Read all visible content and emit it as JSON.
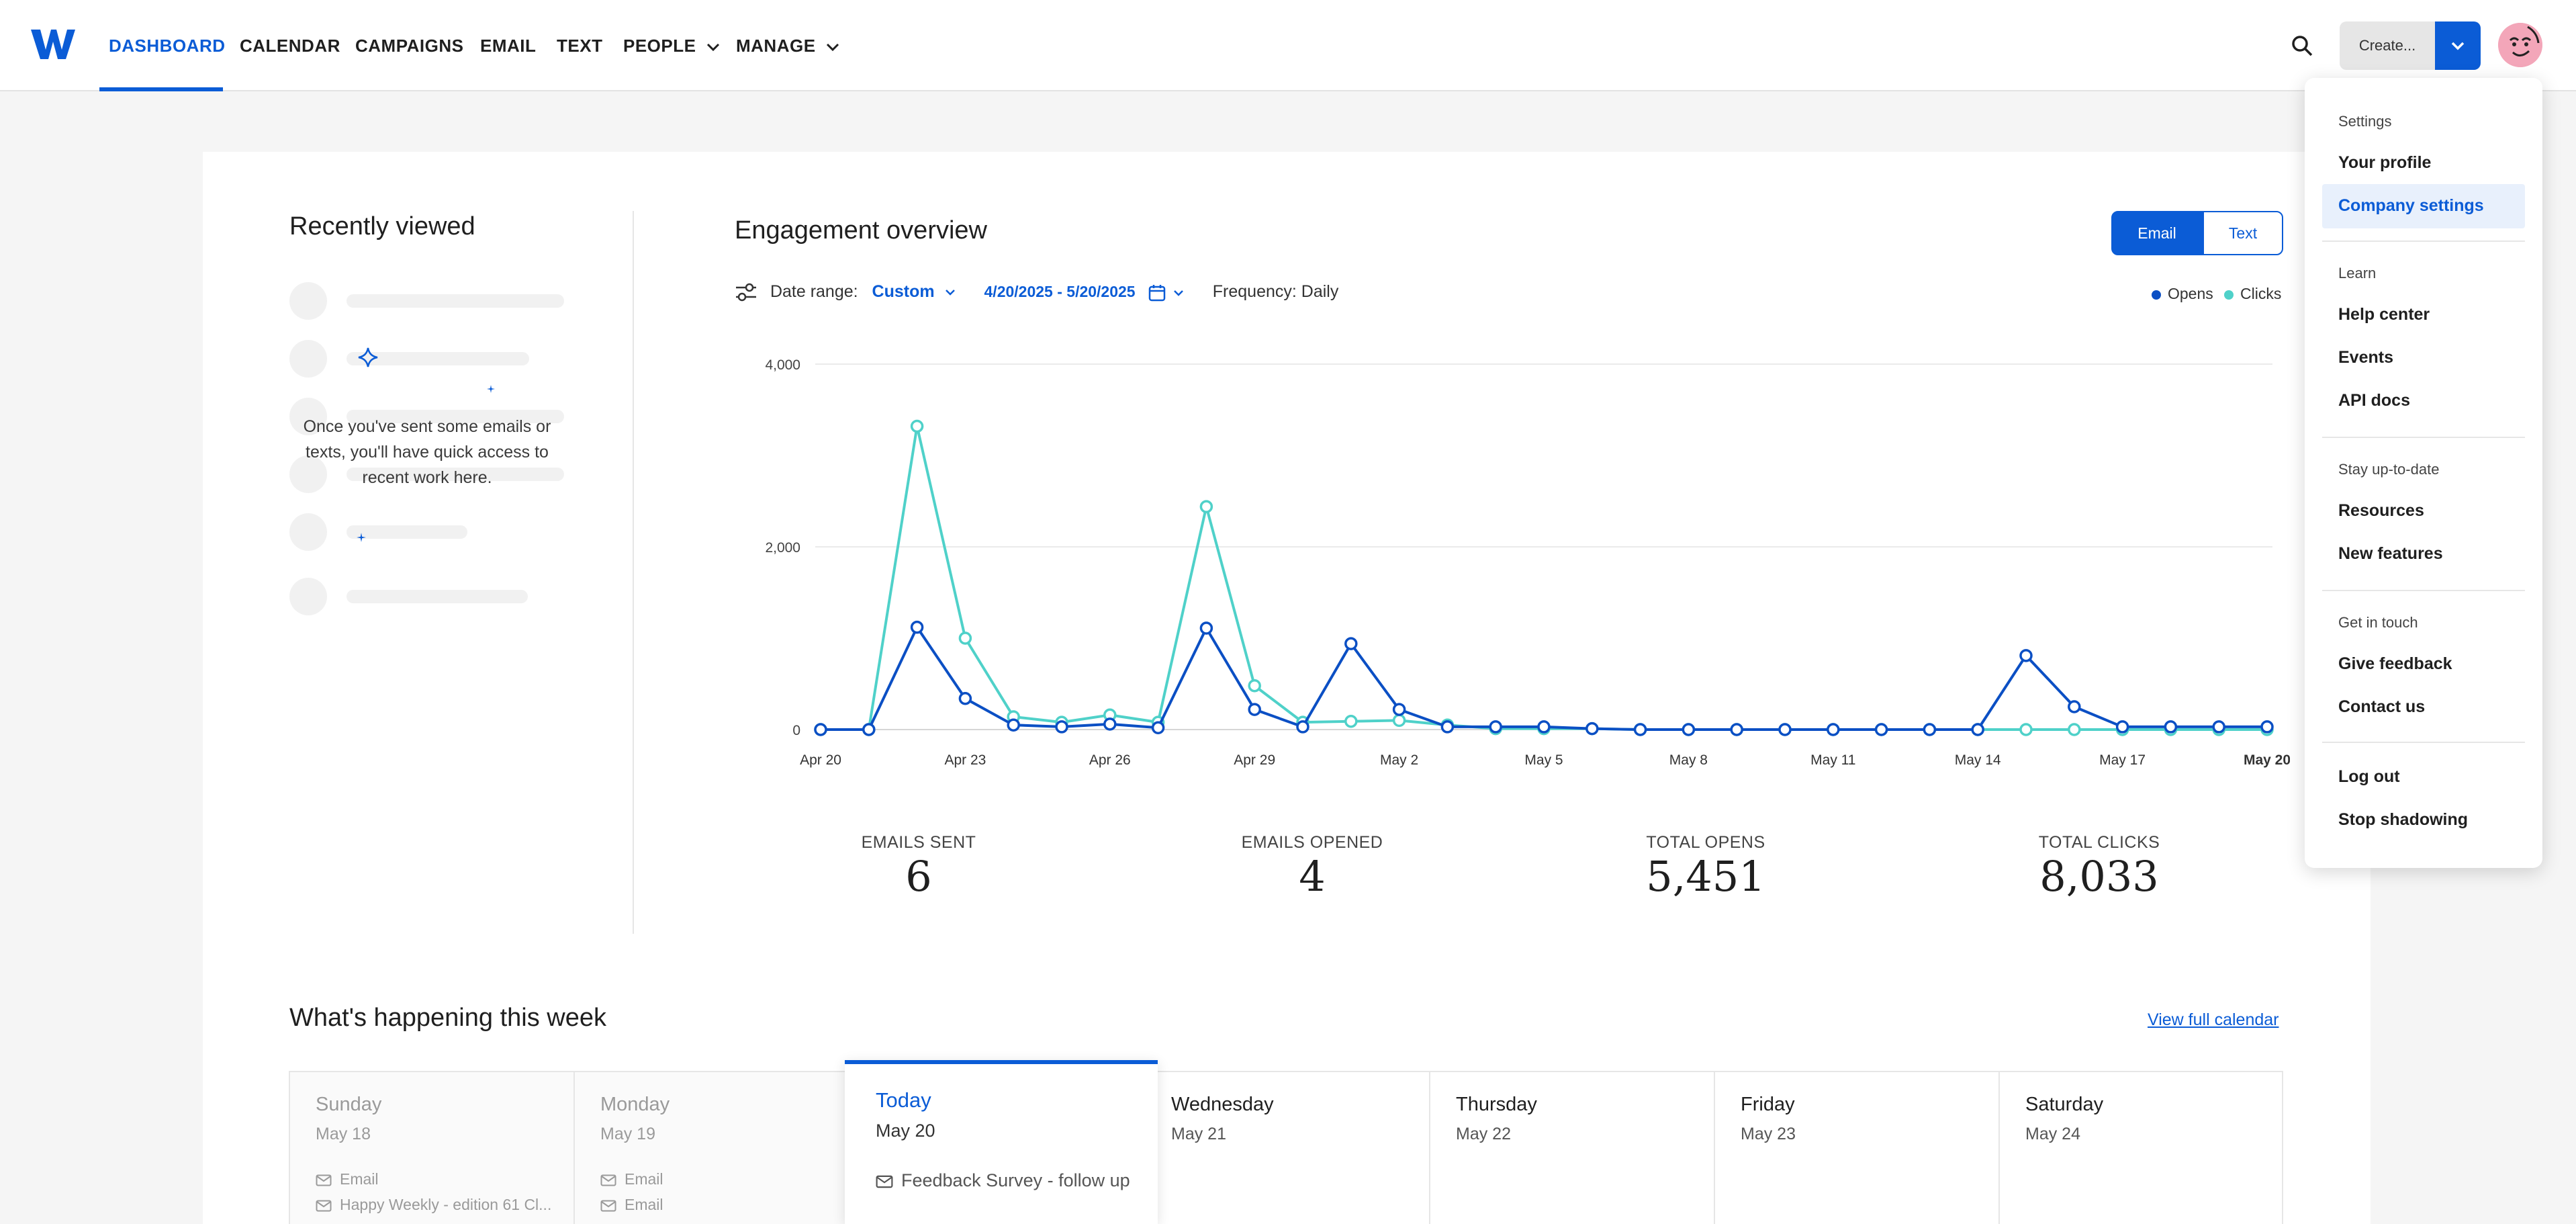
{
  "nav": {
    "logo_icon": "w-logo-icon",
    "items": [
      {
        "label": "DASHBOARD",
        "active": true
      },
      {
        "label": "CALENDAR"
      },
      {
        "label": "CAMPAIGNS"
      },
      {
        "label": "EMAIL"
      },
      {
        "label": "TEXT"
      },
      {
        "label": "PEOPLE",
        "has_caret": true
      },
      {
        "label": "MANAGE",
        "has_caret": true
      }
    ],
    "search_icon": "search-icon",
    "create_label": "Create...",
    "accent": "#0b5cd6"
  },
  "recently_viewed": {
    "title": "Recently viewed",
    "empty_message": "Once you've sent some emails or texts, you'll have quick access to recent work here."
  },
  "engagement": {
    "title": "Engagement overview",
    "toggle": {
      "email": "Email",
      "text": "Text",
      "selected": "Email"
    },
    "date_range_label": "Date range:",
    "date_range_value": "Custom",
    "dates": "4/20/2025 - 5/20/2025",
    "frequency": "Frequency: Daily",
    "legend": [
      {
        "name": "Opens",
        "color": "#0b4fc4"
      },
      {
        "name": "Clicks",
        "color": "#4fd1c9"
      }
    ]
  },
  "chart_data": {
    "type": "line",
    "x_ticks": [
      "Apr 20",
      "Apr 23",
      "Apr 26",
      "Apr 29",
      "May 2",
      "May 5",
      "May 8",
      "May 11",
      "May 14",
      "May 17",
      "May 20"
    ],
    "y_ticks": [
      "4,000",
      "2,000",
      "0"
    ],
    "ylim": [
      0,
      4000
    ],
    "grid": true,
    "legend_position": "top-right",
    "series": [
      {
        "name": "Opens",
        "color": "#0b4fc4",
        "values": [
          0,
          0,
          1120,
          340,
          50,
          30,
          60,
          20,
          1110,
          220,
          30,
          940,
          220,
          30,
          30,
          30,
          10,
          0,
          0,
          0,
          0,
          0,
          0,
          0,
          0,
          810,
          250,
          30,
          30,
          30,
          30
        ]
      },
      {
        "name": "Clicks",
        "color": "#4fd1c9",
        "values": [
          0,
          0,
          3320,
          1000,
          140,
          80,
          160,
          80,
          2440,
          480,
          80,
          90,
          100,
          50,
          10,
          10,
          10,
          0,
          0,
          0,
          0,
          0,
          0,
          0,
          0,
          0,
          0,
          0,
          0,
          0,
          0
        ]
      }
    ]
  },
  "stats": [
    {
      "label": "EMAILS SENT",
      "value": "6"
    },
    {
      "label": "EMAILS OPENED",
      "value": "4"
    },
    {
      "label": "TOTAL OPENS",
      "value": "5,451"
    },
    {
      "label": "TOTAL CLICKS",
      "value": "8,033"
    }
  ],
  "week": {
    "title": "What's happening this week",
    "view_full": "View full calendar",
    "days": [
      {
        "day": "Sunday",
        "date": "May 18",
        "events": [
          "Email",
          "Happy Weekly - edition 61 Cl..."
        ]
      },
      {
        "day": "Monday",
        "date": "May 19",
        "events": [
          "Email",
          "Email"
        ]
      },
      {
        "day": "Today",
        "date": "May 20",
        "events": [
          "Feedback Survey - follow up"
        ]
      },
      {
        "day": "Wednesday",
        "date": "May 21",
        "events": []
      },
      {
        "day": "Thursday",
        "date": "May 22",
        "events": []
      },
      {
        "day": "Friday",
        "date": "May 23",
        "events": []
      },
      {
        "day": "Saturday",
        "date": "May 24",
        "events": []
      }
    ]
  },
  "menu": {
    "sections": [
      {
        "heading": "Settings",
        "items": [
          "Your profile",
          "Company settings"
        ]
      },
      {
        "heading": "Learn",
        "items": [
          "Help center",
          "Events",
          "API docs"
        ]
      },
      {
        "heading": "Stay up-to-date",
        "items": [
          "Resources",
          "New features"
        ]
      },
      {
        "heading": "Get in touch",
        "items": [
          "Give feedback",
          "Contact us"
        ]
      }
    ],
    "footer_items": [
      "Log out",
      "Stop shadowing"
    ],
    "selected": "Company settings"
  }
}
